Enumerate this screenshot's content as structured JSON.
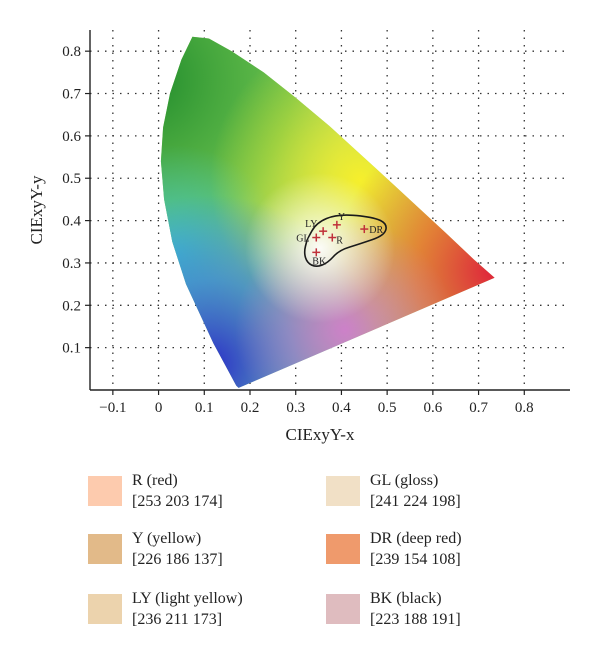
{
  "chart_data": {
    "type": "scatter",
    "xlabel": "CIExyY-x",
    "ylabel": "CIExyY-y",
    "xlim": [
      -0.15,
      0.9
    ],
    "ylim": [
      0,
      0.85
    ],
    "x_ticks": [
      "−0.1",
      "0",
      "0.1",
      "0.2",
      "0.3",
      "0.4",
      "0.5",
      "0.6",
      "0.7",
      "0.8"
    ],
    "y_ticks": [
      "0.1",
      "0.2",
      "0.3",
      "0.4",
      "0.5",
      "0.6",
      "0.7",
      "0.8"
    ],
    "grid": true,
    "background": "CIE 1931 chromaticity diagram",
    "points": [
      {
        "label": "R",
        "x": 0.38,
        "y": 0.36
      },
      {
        "label": "Y",
        "x": 0.39,
        "y": 0.39
      },
      {
        "label": "LY",
        "x": 0.36,
        "y": 0.375
      },
      {
        "label": "GL",
        "x": 0.345,
        "y": 0.36
      },
      {
        "label": "DR",
        "x": 0.45,
        "y": 0.38
      },
      {
        "label": "BK",
        "x": 0.345,
        "y": 0.325
      }
    ],
    "marker_color": "#c0313a"
  },
  "legend": [
    {
      "name": "R (red)",
      "rgb": "[253 203 174]",
      "color": "#fdcbae"
    },
    {
      "name": "Y (yellow)",
      "rgb": "[226 186 137]",
      "color": "#e2ba89"
    },
    {
      "name": "LY (light yellow)",
      "rgb": "[236 211 173]",
      "color": "#ecd3ad"
    },
    {
      "name": "GL (gloss)",
      "rgb": "[241 224 198]",
      "color": "#f1e0c6"
    },
    {
      "name": "DR (deep red)",
      "rgb": "[239 154 108]",
      "color": "#ef9a6c"
    },
    {
      "name": "BK (black)",
      "rgb": "[223 188 191]",
      "color": "#dfbcbf"
    }
  ]
}
